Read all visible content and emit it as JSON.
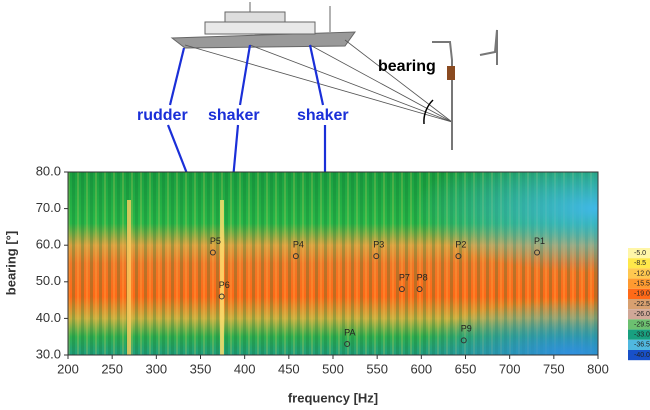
{
  "chart_data": {
    "type": "scatter",
    "x_label": "frequency [Hz]",
    "y_label": "bearing [°]",
    "xlim": [
      200,
      800
    ],
    "xticks": [
      200,
      250,
      300,
      350,
      400,
      450,
      500,
      550,
      600,
      650,
      700,
      750,
      800
    ],
    "ylim": [
      30,
      80
    ],
    "yticks": [
      {
        "value": 30,
        "label": "30.0"
      },
      {
        "value": 40,
        "label": "40.0"
      },
      {
        "value": 50,
        "label": "50.0"
      },
      {
        "value": 60,
        "label": "60.0"
      },
      {
        "value": 70,
        "label": "70.0"
      },
      {
        "value": 80,
        "label": "80.0"
      }
    ],
    "point_labels": [
      "P5",
      "P6",
      "P4",
      "P3",
      "P2",
      "P1",
      "P7",
      "P8",
      "PA",
      "P9"
    ],
    "x": [
      364,
      374,
      458,
      549,
      642,
      731,
      578,
      598,
      516,
      648
    ],
    "values": [
      58,
      46,
      57,
      57,
      57,
      58,
      48,
      48,
      33,
      34
    ],
    "color": "#333333",
    "colorbar": {
      "ticks": [
        {
          "value": -5,
          "label": "-5.0"
        },
        {
          "value": -8.5,
          "label": "-8.5"
        },
        {
          "value": -12,
          "label": "-12.0"
        },
        {
          "value": -15.5,
          "label": "-15.5"
        },
        {
          "value": -19,
          "label": "-19.0"
        },
        {
          "value": -22.5,
          "label": "-22.5"
        },
        {
          "value": -26,
          "label": "-26.0"
        },
        {
          "value": -29.5,
          "label": "-29.5"
        },
        {
          "value": -33,
          "label": "-33.0"
        },
        {
          "value": -36.5,
          "label": "-36.5"
        },
        {
          "value": -40,
          "label": "-40.0"
        }
      ],
      "colors": [
        "#fff6a8",
        "#ffe84a",
        "#ffc850",
        "#ff9a30",
        "#ff6a18",
        "#d8a070",
        "#d0a898",
        "#6cc070",
        "#18a080",
        "#50b8e0",
        "#1850c8"
      ]
    },
    "annotations": [
      "rudder",
      "shaker",
      "shaker",
      "bearing"
    ]
  }
}
